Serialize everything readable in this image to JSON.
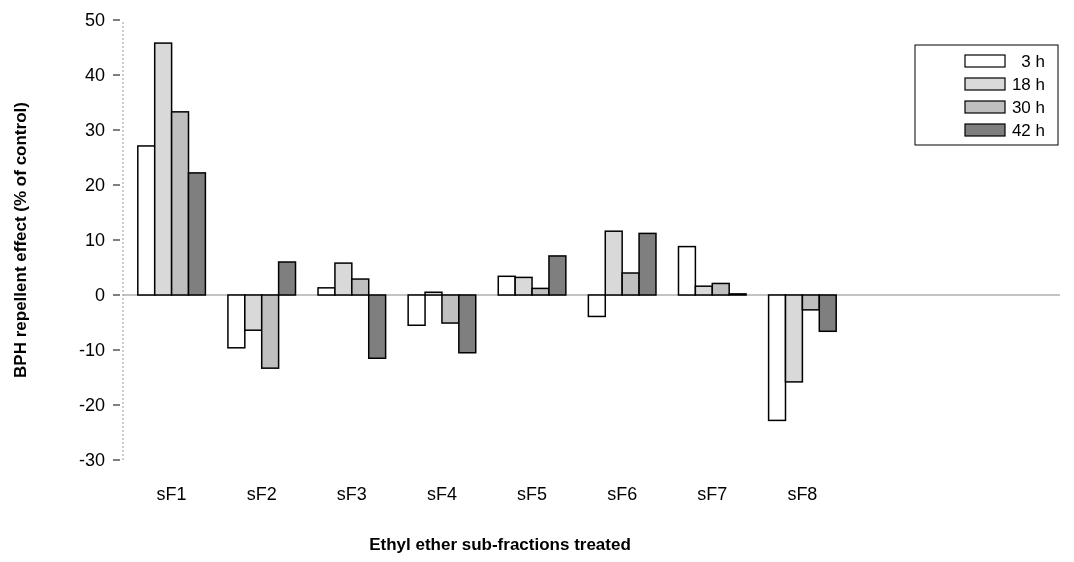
{
  "chart_data": {
    "type": "bar",
    "xlabel": "Ethyl ether sub-fractions treated",
    "ylabel": "BPH repellent effect (% of control)",
    "categories": [
      "sF1",
      "sF2",
      "sF3",
      "sF4",
      "sF5",
      "sF6",
      "sF7",
      "sF8"
    ],
    "series": [
      {
        "name": "3 h",
        "color": "#ffffff",
        "values": [
          27.1,
          -9.6,
          1.3,
          -5.5,
          3.4,
          -3.9,
          8.8,
          -22.8
        ]
      },
      {
        "name": "18 h",
        "color": "#d9d9d9",
        "values": [
          45.8,
          -6.4,
          5.8,
          0.5,
          3.2,
          11.6,
          1.6,
          -15.8
        ]
      },
      {
        "name": "30 h",
        "color": "#bfbfbf",
        "values": [
          33.3,
          -13.3,
          2.9,
          -5.1,
          1.2,
          4.0,
          2.1,
          -2.7
        ]
      },
      {
        "name": "42 h",
        "color": "#7f7f7f",
        "values": [
          22.2,
          6.0,
          -11.5,
          -10.5,
          7.1,
          11.2,
          0.2,
          -6.6
        ]
      }
    ],
    "ylim": [
      -30,
      50
    ],
    "yticks": [
      -30,
      -20,
      -10,
      0,
      10,
      20,
      30,
      40,
      50
    ],
    "grid": false,
    "legend": "top right"
  }
}
